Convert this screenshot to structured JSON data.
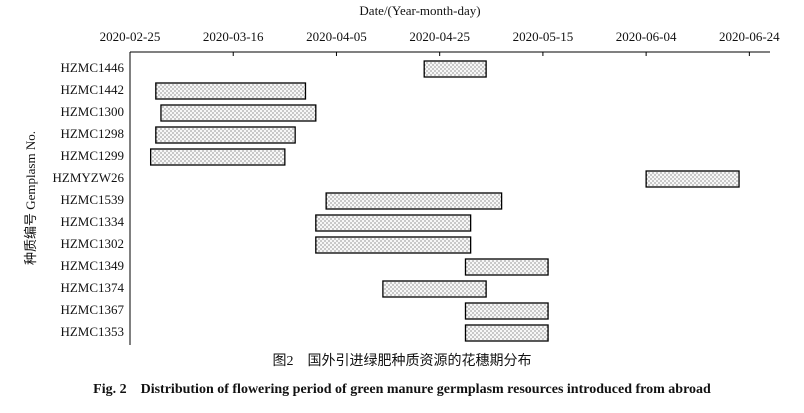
{
  "chart_data": {
    "type": "range-bar",
    "x_label": "Date/(Year-month-day)",
    "y_label": "种质编号 Gemplasm No.",
    "caption_cn": "图2　国外引进绿肥种质资源的花穗期分布",
    "caption_en": "Fig. 2　Distribution of flowering period of green manure germplasm resources introduced from abroad",
    "categories": [
      "HZMC1446",
      "HZMC1442",
      "HZMC1300",
      "HZMC1298",
      "HZMC1299",
      "HZMYZW26",
      "HZMC1539",
      "HZMC1334",
      "HZMC1302",
      "HZMC1349",
      "HZMC1374",
      "HZMC1367",
      "HZMC1353"
    ],
    "values": [
      [
        "2020-04-22",
        "2020-05-04"
      ],
      [
        "2020-03-01",
        "2020-03-30"
      ],
      [
        "2020-03-02",
        "2020-04-01"
      ],
      [
        "2020-03-01",
        "2020-03-28"
      ],
      [
        "2020-02-29",
        "2020-03-26"
      ],
      [
        "2020-06-04",
        "2020-06-22"
      ],
      [
        "2020-04-03",
        "2020-05-07"
      ],
      [
        "2020-04-01",
        "2020-05-01"
      ],
      [
        "2020-04-01",
        "2020-05-01"
      ],
      [
        "2020-04-30",
        "2020-05-16"
      ],
      [
        "2020-04-14",
        "2020-05-04"
      ],
      [
        "2020-04-30",
        "2020-05-16"
      ],
      [
        "2020-04-30",
        "2020-05-16"
      ]
    ],
    "xlim": [
      "2020-02-25",
      "2020-06-28"
    ],
    "xticks": [
      "2020-02-25",
      "2020-03-16",
      "2020-04-05",
      "2020-04-25",
      "2020-05-15",
      "2020-06-04",
      "2020-06-24"
    ],
    "x_axis_position": "top",
    "fill": "dotted",
    "color": "#f4f4f4"
  }
}
